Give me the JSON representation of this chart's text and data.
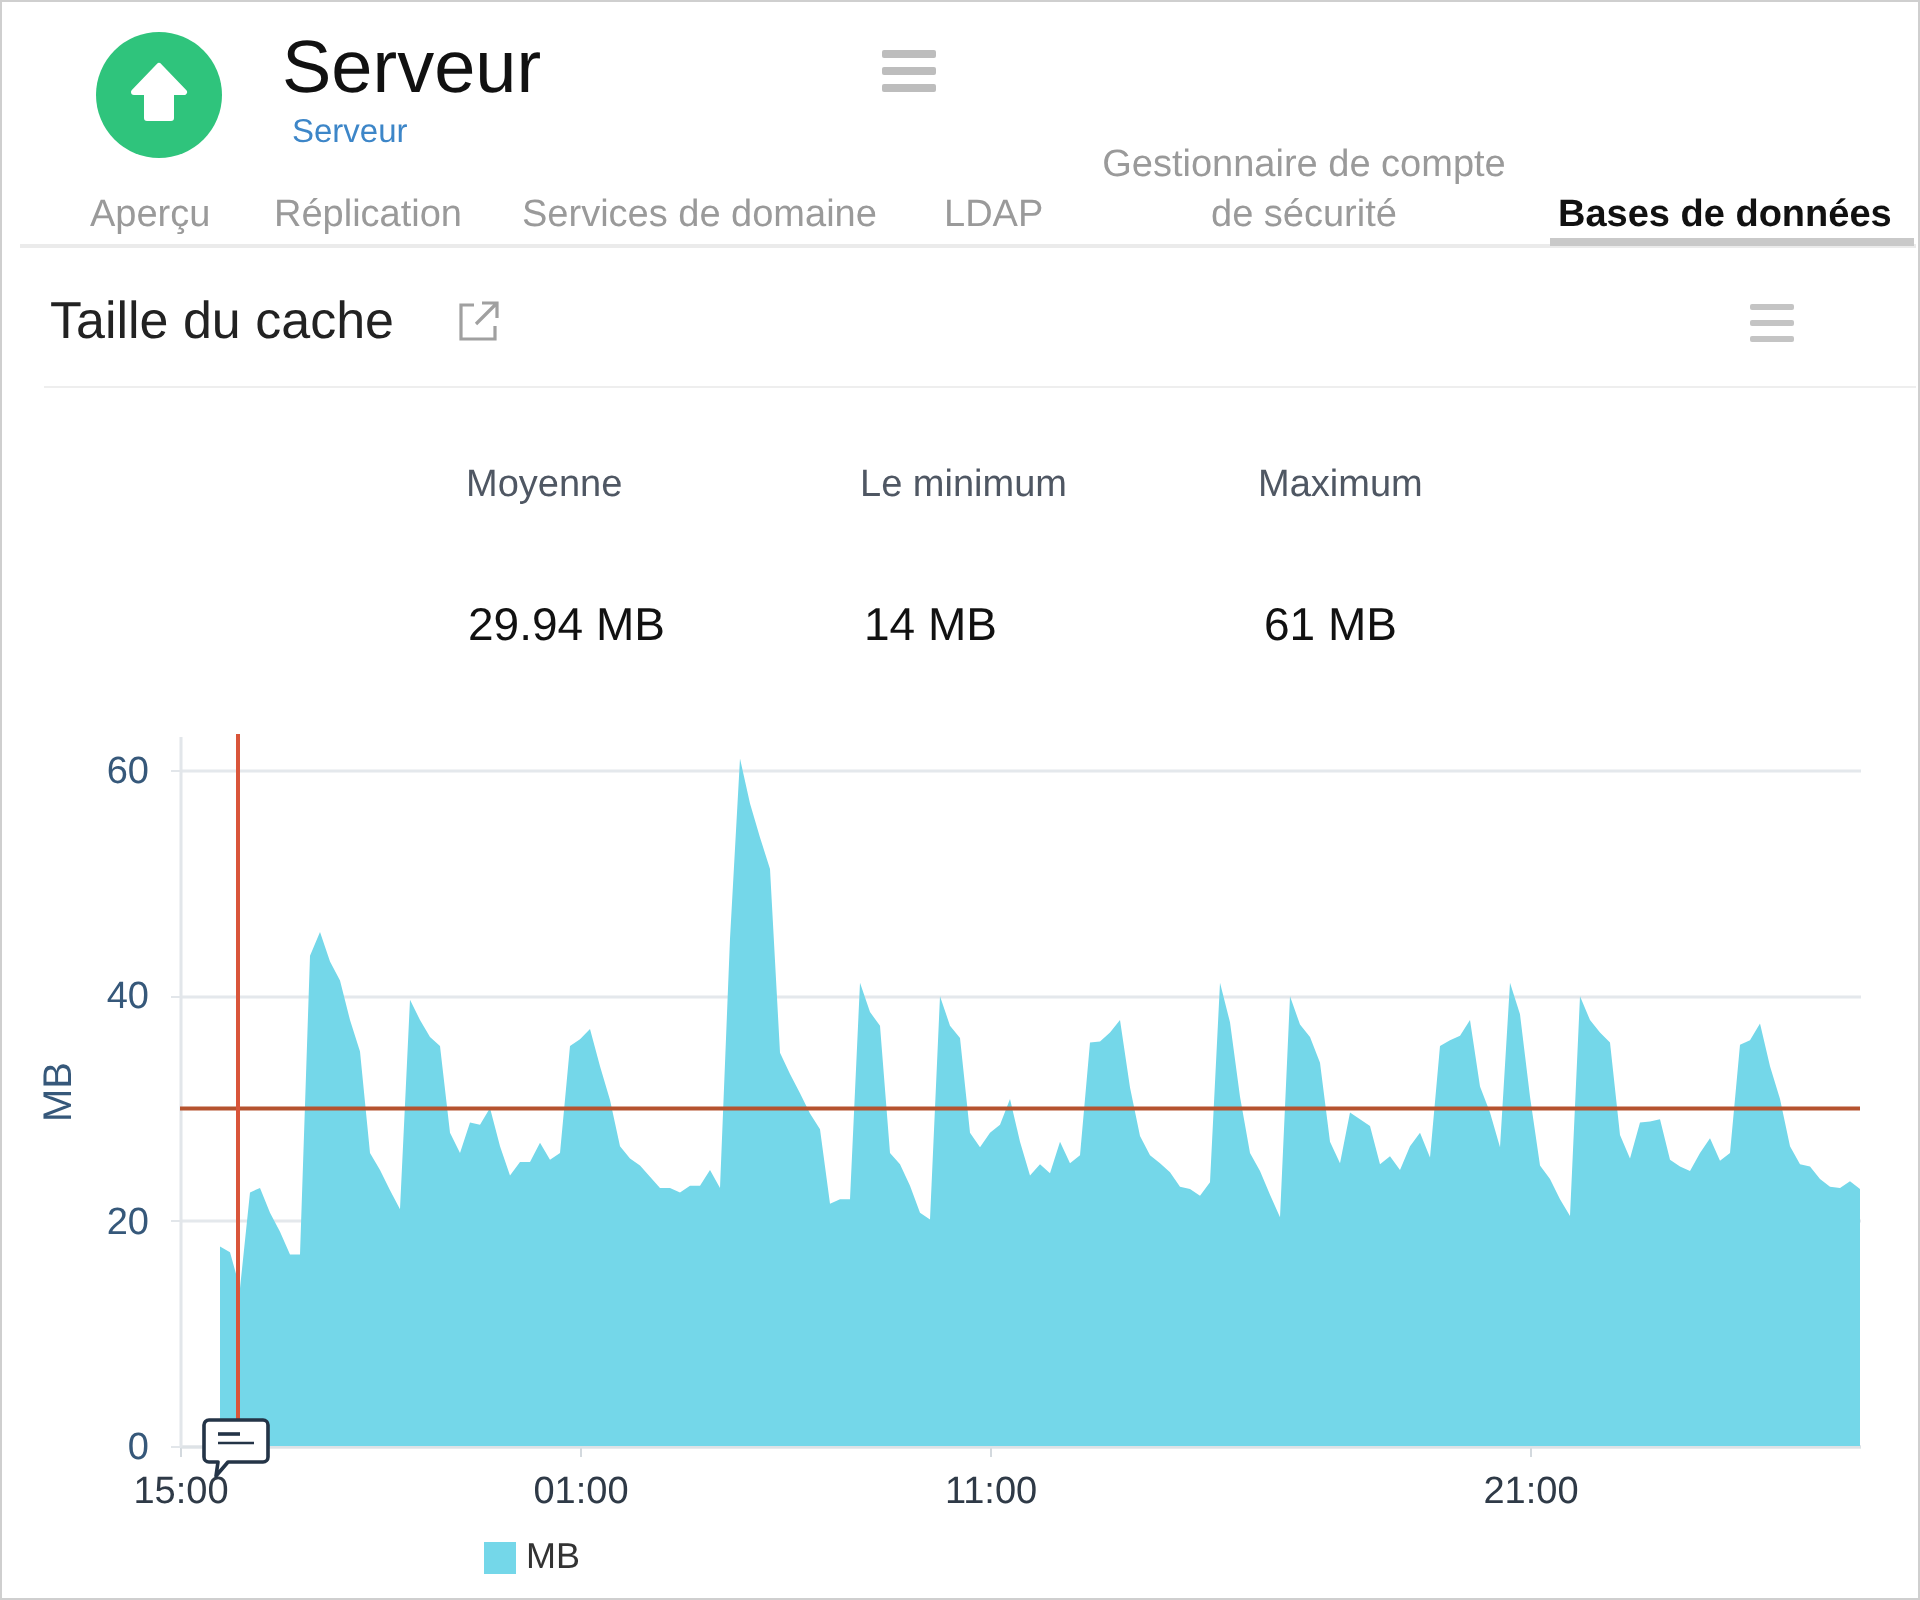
{
  "chart_data": {
    "type": "area",
    "title": "Taille du cache",
    "ylabel": "MB",
    "annotations": [
      "Serveur",
      "Serveur",
      "Aperçu",
      "Réplication",
      "Services de domaine",
      "LDAP",
      "Gestionnaire de compte de sécurité",
      "Bases de données",
      "Moyenne",
      "Le minimum",
      "Maximum",
      "29.94 MB",
      "14 MB",
      "61 MB"
    ],
    "categories": [
      "15:00",
      null,
      null,
      null,
      null,
      null,
      null,
      null,
      null,
      null,
      null,
      null,
      null,
      null,
      null,
      null,
      null,
      null,
      null,
      null,
      null,
      null,
      null,
      null,
      null,
      null,
      null,
      null,
      null,
      null,
      null,
      null,
      null,
      null,
      null,
      null,
      null,
      null,
      null,
      null,
      "01:00",
      null,
      null,
      null,
      null,
      null,
      null,
      null,
      null,
      null,
      null,
      null,
      null,
      null,
      null,
      null,
      null,
      null,
      null,
      null,
      null,
      null,
      null,
      null,
      null,
      null,
      null,
      null,
      null,
      null,
      null,
      null,
      null,
      null,
      null,
      null,
      null,
      null,
      null,
      null,
      null,
      "11:00",
      null,
      null,
      null,
      null,
      null,
      null,
      null,
      null,
      null,
      null,
      null,
      null,
      null,
      null,
      null,
      null,
      null,
      null,
      null,
      null,
      null,
      null,
      null,
      null,
      null,
      null,
      null,
      null,
      null,
      null,
      null,
      null,
      null,
      null,
      null,
      null,
      null,
      null,
      null,
      null,
      null,
      null,
      null,
      null,
      null,
      null,
      null,
      null,
      null,
      null,
      null,
      null,
      null,
      "21:00",
      null,
      null,
      null,
      null,
      null,
      null,
      null,
      null,
      null,
      null,
      null,
      null,
      null,
      null,
      null,
      null,
      null,
      null,
      null,
      null,
      null,
      null,
      null,
      null,
      null,
      null,
      null,
      null,
      null,
      null,
      null,
      null,
      null
    ],
    "series": [
      {
        "name": "MB",
        "color": "#74d7e9",
        "values": [
          null,
          null,
          null,
          null,
          17.7,
          17.2,
          14,
          22.5,
          22.9,
          20.7,
          19.0,
          17.0,
          17.0,
          43.5,
          45.6,
          43.0,
          41.3,
          37.8,
          35.0,
          26.0,
          24.5,
          22.7,
          21.0,
          39.6,
          37.8,
          36.3,
          35.5,
          27.8,
          26.0,
          28.7,
          28.5,
          30.0,
          26.6,
          24.0,
          25.2,
          25.2,
          26.9,
          25.4,
          26.0,
          35.5,
          36.1,
          37.0,
          33.7,
          30.7,
          26.6,
          25.5,
          24.9,
          23.9,
          22.9,
          22.9,
          22.5,
          23.1,
          23.1,
          24.5,
          22.9,
          45.0,
          61.0,
          57.0,
          54.0,
          51.2,
          34.9,
          33.0,
          31.3,
          29.5,
          28.1,
          21.5,
          21.9,
          21.9,
          41.1,
          38.5,
          37.3,
          26.0,
          25.0,
          23.1,
          20.7,
          20.1,
          39.9,
          37.3,
          36.2,
          27.8,
          26.5,
          27.8,
          28.5,
          30.8,
          27.0,
          24.0,
          25.0,
          24.2,
          27.0,
          25.1,
          25.8,
          35.8,
          35.9,
          36.7,
          37.8,
          31.8,
          27.5,
          25.8,
          25.1,
          24.3,
          23.0,
          22.8,
          22.2,
          23.4,
          41.1,
          37.6,
          31.0,
          26.0,
          24.4,
          22.3,
          20.3,
          39.9,
          37.4,
          36.3,
          34.0,
          27.0,
          25.1,
          29.6,
          29.0,
          28.4,
          25.0,
          25.7,
          24.5,
          26.6,
          27.8,
          25.6,
          35.5,
          36.0,
          36.4,
          37.8,
          31.9,
          29.6,
          26.5,
          41.1,
          38.3,
          31.0,
          24.9,
          23.7,
          21.9,
          20.4,
          39.9,
          37.8,
          36.7,
          35.8,
          27.6,
          25.5,
          28.7,
          28.8,
          29.0,
          25.4,
          24.8,
          24.4,
          26.0,
          27.3,
          25.3,
          26.0,
          35.6,
          36.0,
          37.5,
          33.7,
          30.8,
          26.6,
          25.0,
          24.8,
          23.7,
          23.0,
          22.9,
          23.5,
          22.8
        ]
      }
    ],
    "ylim": [
      0,
      63
    ],
    "yticks": [
      0,
      20,
      40,
      60
    ],
    "ref_lines": [
      {
        "axis": "y",
        "value": 29.94,
        "color": "#b5532f"
      }
    ],
    "grid": "y",
    "legend": "bottom"
  }
}
